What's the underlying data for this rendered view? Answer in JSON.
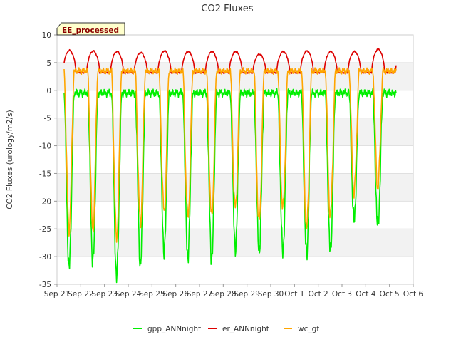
{
  "chart_data": {
    "type": "line",
    "title": "CO2 Fluxes",
    "xlabel": "",
    "ylabel": "CO2 Fluxes (urology/m2/s)",
    "badge": "EE_processed",
    "x_ticks": [
      "Sep 21",
      "Sep 22",
      "Sep 23",
      "Sep 24",
      "Sep 25",
      "Sep 26",
      "Sep 27",
      "Sep 28",
      "Sep 29",
      "Sep 30",
      "Oct 1",
      "Oct 2",
      "Oct 3",
      "Oct 4",
      "Oct 5",
      "Oct 6"
    ],
    "y_ticks": [
      10,
      5,
      0,
      -5,
      -10,
      -15,
      -20,
      -25,
      -30,
      -35
    ],
    "xlim": [
      0,
      15
    ],
    "ylim": [
      -35,
      10
    ],
    "grid": true,
    "legend_position": "bottom",
    "days_start": 0.3,
    "days_end": 14.3,
    "series": [
      {
        "name": "gpp_ANNnight",
        "color": "#00ee00",
        "night_level": -0.5,
        "day_min": [
          -32,
          -31,
          -33.5,
          -31.5,
          -29,
          -30,
          -30.5,
          -28.5,
          -29,
          -29,
          -29.5,
          -29,
          -23.5,
          -24.5
        ]
      },
      {
        "name": "er_ANNnight",
        "color": "#dd0000",
        "night_level": 3.2,
        "day_max": [
          7.2,
          7.1,
          7.0,
          6.8,
          7.1,
          7.0,
          7.0,
          7.0,
          6.5,
          7.0,
          7.1,
          7.0,
          7.0,
          7.4
        ]
      },
      {
        "name": "wc_gf",
        "color": "#ffa500",
        "night_level": 3.5,
        "day_min": [
          -25,
          -25,
          -26.5,
          -24,
          -22,
          -23,
          -23,
          -21.5,
          -24,
          -21.5,
          -25,
          -22.5,
          -18.5,
          -17.5
        ]
      }
    ]
  }
}
